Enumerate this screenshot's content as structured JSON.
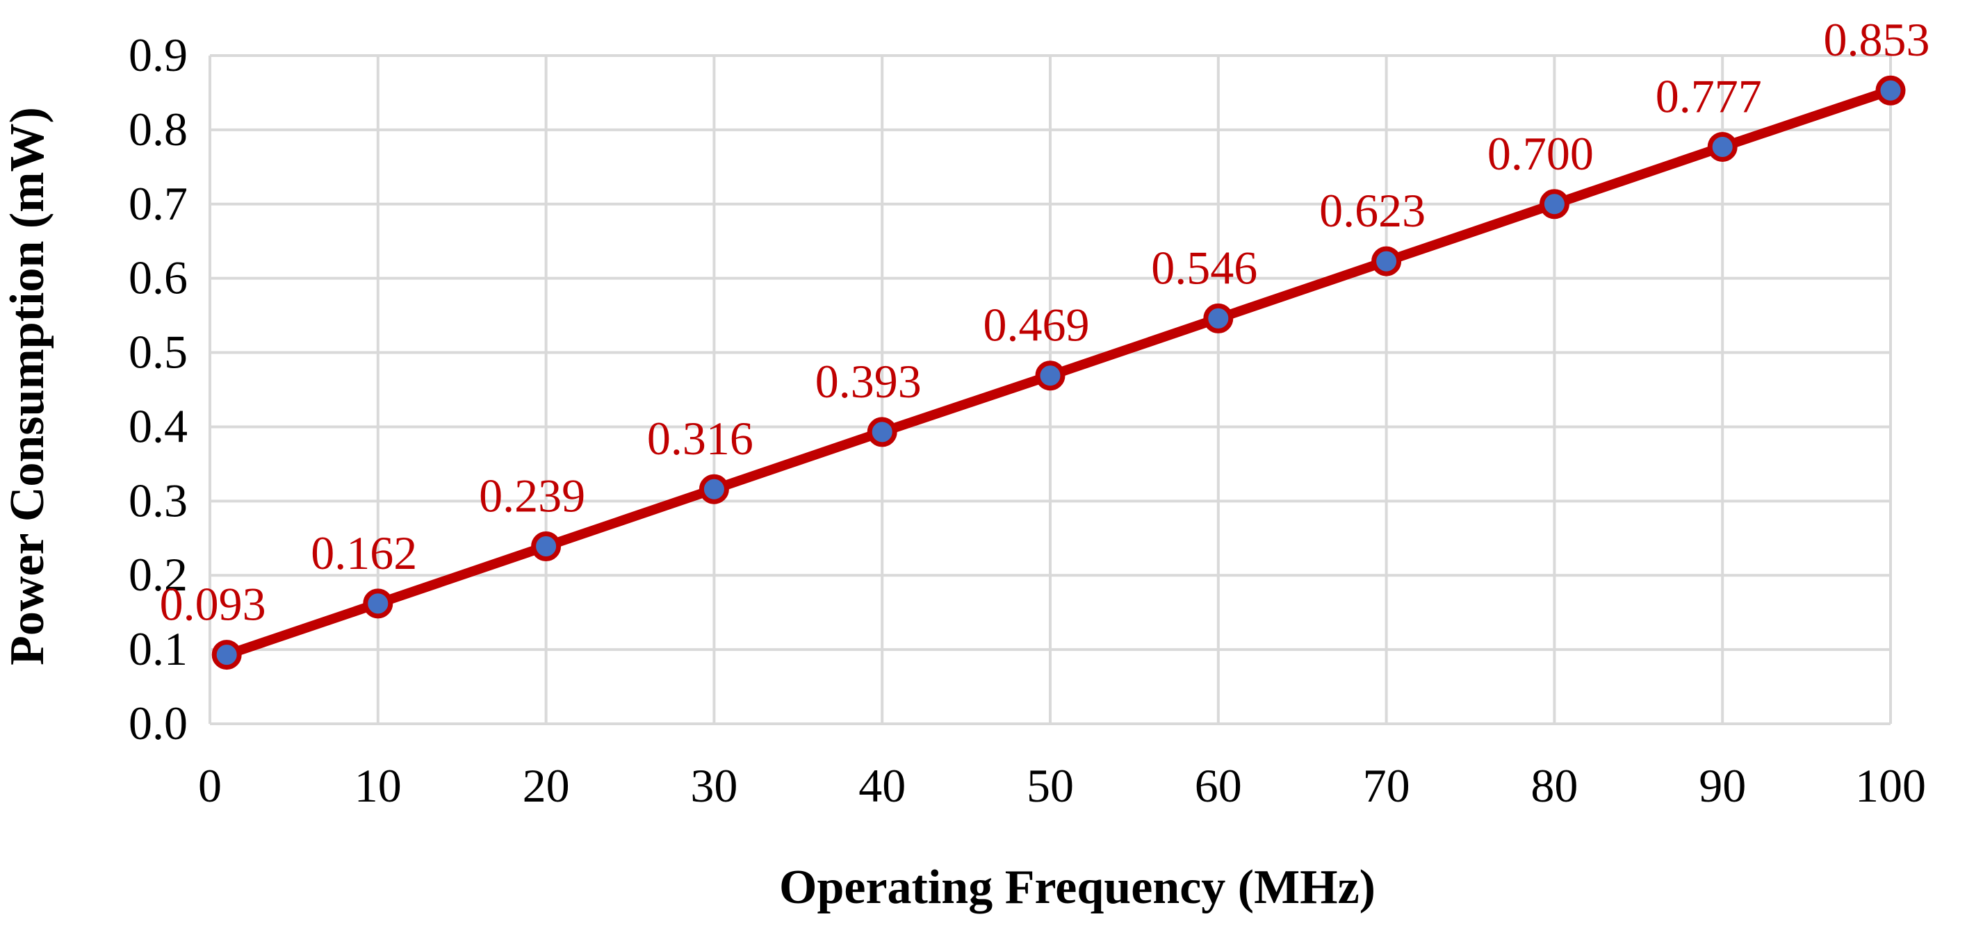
{
  "chart_data": {
    "type": "line",
    "title": "",
    "xlabel": "Operating Frequency (MHz)",
    "ylabel": "Power Consumption (mW)",
    "xlim": [
      0,
      100
    ],
    "ylim": [
      0,
      0.9
    ],
    "xticks": [
      0,
      10,
      20,
      30,
      40,
      50,
      60,
      70,
      80,
      90,
      100
    ],
    "xtick_labels": [
      "0",
      "10",
      "20",
      "30",
      "40",
      "50",
      "60",
      "70",
      "80",
      "90",
      "100"
    ],
    "yticks": [
      0,
      0.1,
      0.2,
      0.3,
      0.4,
      0.5,
      0.6,
      0.7,
      0.8,
      0.9
    ],
    "ytick_labels": [
      "0.0",
      "0.1",
      "0.2",
      "0.3",
      "0.4",
      "0.5",
      "0.6",
      "0.7",
      "0.8",
      "0.9"
    ],
    "grid": true,
    "series": [
      {
        "name": "Power Consumption",
        "x": [
          1,
          10,
          20,
          30,
          40,
          50,
          60,
          70,
          80,
          90,
          100
        ],
        "values": [
          0.093,
          0.162,
          0.239,
          0.316,
          0.393,
          0.469,
          0.546,
          0.623,
          0.7,
          0.777,
          0.853
        ],
        "labels": [
          "0.093",
          "0.162",
          "0.239",
          "0.316",
          "0.393",
          "0.469",
          "0.546",
          "0.623",
          "0.700",
          "0.777",
          "0.853"
        ],
        "line_color": "#c00000",
        "marker_fill": "#4472c4",
        "marker_edge": "#c00000"
      }
    ]
  }
}
